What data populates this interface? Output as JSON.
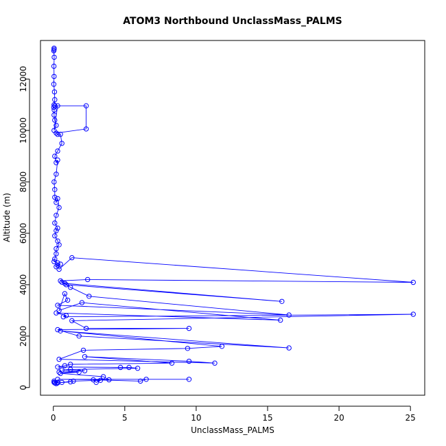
{
  "chart_data": {
    "type": "scatter",
    "title": "ATOM3 Northbound UnclassMass_PALMS",
    "xlabel": "UnclassMass_PALMS",
    "ylabel": "Altitude (m)",
    "xlim": [
      -0.9,
      26.0
    ],
    "ylim": [
      -300,
      13500
    ],
    "x_ticks": [
      0,
      5,
      10,
      15,
      20,
      25
    ],
    "x_tick_labels": [
      "0",
      "5",
      "10",
      "15",
      "20",
      "25"
    ],
    "y_ticks": [
      0,
      2000,
      4000,
      6000,
      8000,
      10000,
      12000
    ],
    "y_tick_labels": [
      "0",
      "2000",
      "4000",
      "6000",
      "8000",
      "10000",
      "12000"
    ],
    "grid": false,
    "legend": "none",
    "colors": {
      "series": "#0000ff",
      "axes": "#000000"
    },
    "series": [
      {
        "x": [
          0.05,
          0.05,
          0.03,
          0.06,
          0.04,
          0.05,
          0.03,
          0.08,
          0.1,
          0.05,
          0.03,
          0.06,
          0.05,
          0.1,
          0.2,
          0.05,
          0.3,
          0.1,
          2.3,
          2.3,
          0.2,
          0.3,
          0.5,
          0.6,
          0.3,
          0.1,
          0.2,
          0.3,
          0.2,
          0.05,
          0.1,
          0.1,
          0.2,
          0.3,
          0.4,
          0.2,
          0.1,
          0.3,
          0.2,
          0.1,
          0.3,
          0.4,
          0.2,
          0.2,
          0.1,
          0.05,
          0.3,
          0.2,
          0.5,
          0.3,
          0.4,
          1.3,
          25.2,
          2.4,
          0.5,
          0.9,
          16.0,
          0.8,
          0.6,
          1.2,
          2.5,
          16.5,
          0.3,
          1.0,
          0.8,
          0.4,
          2.0,
          15.9,
          0.2,
          0.9,
          0.7,
          25.2,
          1.3,
          2.3,
          9.5,
          0.3,
          1.8,
          16.5,
          0.5,
          11.8,
          9.4,
          2.1,
          0.4,
          11.3,
          9.5,
          2.2,
          8.3,
          1.2,
          0.8,
          0.3,
          4.7,
          5.3,
          5.9,
          1.2,
          0.6,
          2.2,
          0.4,
          1.8,
          0.5,
          3.5,
          3.9,
          0.3,
          9.5,
          6.5,
          6.1,
          2.8,
          3.0,
          3.3,
          1.4,
          0.6,
          0.3,
          1.2,
          0.1,
          0.05,
          0.3,
          0.2,
          0.1,
          0.05
        ],
        "y": [
          13200,
          13150,
          13100,
          12850,
          12500,
          12100,
          11800,
          11500,
          11200,
          11000,
          10900,
          10800,
          10600,
          10400,
          10200,
          10000,
          10960,
          10960,
          10960,
          10060,
          9900,
          9850,
          9850,
          9500,
          9200,
          9000,
          8750,
          8850,
          8300,
          8000,
          7700,
          7400,
          7200,
          7350,
          7000,
          6700,
          6400,
          6200,
          6100,
          5900,
          5700,
          5550,
          5400,
          5200,
          5000,
          4900,
          4850,
          4700,
          4800,
          4750,
          4600,
          5050,
          4090,
          4200,
          4150,
          4000,
          3350,
          4050,
          4100,
          3900,
          3550,
          2820,
          3200,
          3400,
          3650,
          3000,
          3300,
          2620,
          2900,
          2800,
          2750,
          2850,
          2600,
          2300,
          2300,
          2250,
          2000,
          1540,
          2200,
          1600,
          1520,
          1450,
          1100,
          950,
          1020,
          1200,
          950,
          900,
          850,
          800,
          780,
          780,
          750,
          700,
          680,
          650,
          600,
          600,
          550,
          420,
          300,
          320,
          320,
          320,
          250,
          300,
          200,
          280,
          250,
          200,
          180,
          220,
          180,
          250,
          200,
          150,
          180,
          200
        ]
      }
    ]
  }
}
